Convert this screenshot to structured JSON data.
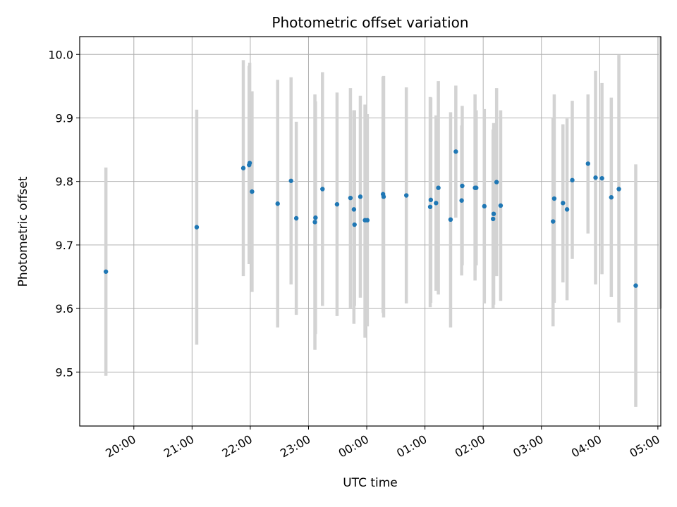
{
  "chart_data": {
    "type": "scatter",
    "title": "Photometric offset variation",
    "xlabel": "UTC time",
    "ylabel": "Photometric offset",
    "x_unit": "hours since 00:00 UTC",
    "xlim": [
      -4.93,
      5.05
    ],
    "ylim": [
      9.415,
      10.028
    ],
    "grid": true,
    "point_color": "#1f77b4",
    "errorbar_color": "#d3d3d3",
    "x_ticks": [
      {
        "value": -4,
        "label": "20:00"
      },
      {
        "value": -3,
        "label": "21:00"
      },
      {
        "value": -2,
        "label": "22:00"
      },
      {
        "value": -1,
        "label": "23:00"
      },
      {
        "value": 0,
        "label": "00:00"
      },
      {
        "value": 1,
        "label": "01:00"
      },
      {
        "value": 2,
        "label": "02:00"
      },
      {
        "value": 3,
        "label": "03:00"
      },
      {
        "value": 4,
        "label": "04:00"
      },
      {
        "value": 5,
        "label": "05:00"
      }
    ],
    "y_ticks": [
      {
        "value": 9.5,
        "label": "9.5"
      },
      {
        "value": 9.6,
        "label": "9.6"
      },
      {
        "value": 9.7,
        "label": "9.7"
      },
      {
        "value": 9.8,
        "label": "9.8"
      },
      {
        "value": 9.9,
        "label": "9.9"
      },
      {
        "value": 10.0,
        "label": "10.0"
      }
    ],
    "points": [
      {
        "x": -4.48,
        "y": 9.658,
        "lo": 9.494,
        "hi": 9.822
      },
      {
        "x": -2.92,
        "y": 9.728,
        "lo": 9.543,
        "hi": 9.913
      },
      {
        "x": -2.12,
        "y": 9.821,
        "lo": 9.651,
        "hi": 9.991
      },
      {
        "x": -2.02,
        "y": 9.826,
        "lo": 9.67,
        "hi": 9.982
      },
      {
        "x": -2.01,
        "y": 9.829,
        "lo": 9.672,
        "hi": 9.987
      },
      {
        "x": -1.97,
        "y": 9.784,
        "lo": 9.626,
        "hi": 9.942
      },
      {
        "x": -1.53,
        "y": 9.765,
        "lo": 9.57,
        "hi": 9.96
      },
      {
        "x": -1.3,
        "y": 9.801,
        "lo": 9.638,
        "hi": 9.964
      },
      {
        "x": -1.21,
        "y": 9.742,
        "lo": 9.59,
        "hi": 9.894
      },
      {
        "x": -0.89,
        "y": 9.736,
        "lo": 9.535,
        "hi": 9.937
      },
      {
        "x": -0.88,
        "y": 9.743,
        "lo": 9.56,
        "hi": 9.926
      },
      {
        "x": -0.76,
        "y": 9.788,
        "lo": 9.604,
        "hi": 9.972
      },
      {
        "x": -0.51,
        "y": 9.764,
        "lo": 9.588,
        "hi": 9.94
      },
      {
        "x": -0.28,
        "y": 9.774,
        "lo": 9.601,
        "hi": 9.947
      },
      {
        "x": -0.22,
        "y": 9.756,
        "lo": 9.576,
        "hi": 9.912
      },
      {
        "x": -0.21,
        "y": 9.732,
        "lo": 9.604,
        "hi": 9.912
      },
      {
        "x": -0.11,
        "y": 9.776,
        "lo": 9.617,
        "hi": 9.935
      },
      {
        "x": -0.03,
        "y": 9.739,
        "lo": 9.554,
        "hi": 9.921
      },
      {
        "x": 0.01,
        "y": 9.739,
        "lo": 9.572,
        "hi": 9.906
      },
      {
        "x": 0.28,
        "y": 9.78,
        "lo": 9.593,
        "hi": 9.965
      },
      {
        "x": 0.29,
        "y": 9.776,
        "lo": 9.586,
        "hi": 9.966
      },
      {
        "x": 0.68,
        "y": 9.778,
        "lo": 9.608,
        "hi": 9.948
      },
      {
        "x": 1.09,
        "y": 9.76,
        "lo": 9.602,
        "hi": 9.933
      },
      {
        "x": 1.1,
        "y": 9.771,
        "lo": 9.609,
        "hi": 9.932
      },
      {
        "x": 1.19,
        "y": 9.766,
        "lo": 9.628,
        "hi": 9.904
      },
      {
        "x": 1.23,
        "y": 9.79,
        "lo": 9.622,
        "hi": 9.958
      },
      {
        "x": 1.44,
        "y": 9.74,
        "lo": 9.57,
        "hi": 9.909
      },
      {
        "x": 1.53,
        "y": 9.847,
        "lo": 9.743,
        "hi": 9.951
      },
      {
        "x": 1.63,
        "y": 9.77,
        "lo": 9.652,
        "hi": 9.888
      },
      {
        "x": 1.64,
        "y": 9.793,
        "lo": 9.668,
        "hi": 9.919
      },
      {
        "x": 1.86,
        "y": 9.79,
        "lo": 9.644,
        "hi": 9.937
      },
      {
        "x": 1.88,
        "y": 9.79,
        "lo": 9.668,
        "hi": 9.912
      },
      {
        "x": 2.02,
        "y": 9.761,
        "lo": 9.608,
        "hi": 9.914
      },
      {
        "x": 2.17,
        "y": 9.741,
        "lo": 9.6,
        "hi": 9.882
      },
      {
        "x": 2.18,
        "y": 9.749,
        "lo": 9.606,
        "hi": 9.892
      },
      {
        "x": 2.23,
        "y": 9.799,
        "lo": 9.651,
        "hi": 9.947
      },
      {
        "x": 2.3,
        "y": 9.762,
        "lo": 9.612,
        "hi": 9.912
      },
      {
        "x": 3.2,
        "y": 9.737,
        "lo": 9.572,
        "hi": 9.901
      },
      {
        "x": 3.22,
        "y": 9.773,
        "lo": 9.609,
        "hi": 9.937
      },
      {
        "x": 3.37,
        "y": 9.766,
        "lo": 9.641,
        "hi": 9.89
      },
      {
        "x": 3.44,
        "y": 9.756,
        "lo": 9.613,
        "hi": 9.899
      },
      {
        "x": 3.53,
        "y": 9.802,
        "lo": 9.678,
        "hi": 9.927
      },
      {
        "x": 3.8,
        "y": 9.828,
        "lo": 9.718,
        "hi": 9.937
      },
      {
        "x": 3.93,
        "y": 9.806,
        "lo": 9.638,
        "hi": 9.974
      },
      {
        "x": 4.04,
        "y": 9.805,
        "lo": 9.654,
        "hi": 9.955
      },
      {
        "x": 4.2,
        "y": 9.775,
        "lo": 9.618,
        "hi": 9.932
      },
      {
        "x": 4.33,
        "y": 9.788,
        "lo": 9.578,
        "hi": 9.999
      },
      {
        "x": 4.62,
        "y": 9.636,
        "lo": 9.445,
        "hi": 9.827
      },
      {
        "x": 5.04,
        "y": 9.8,
        "lo": 9.6,
        "hi": 10.028
      }
    ]
  }
}
